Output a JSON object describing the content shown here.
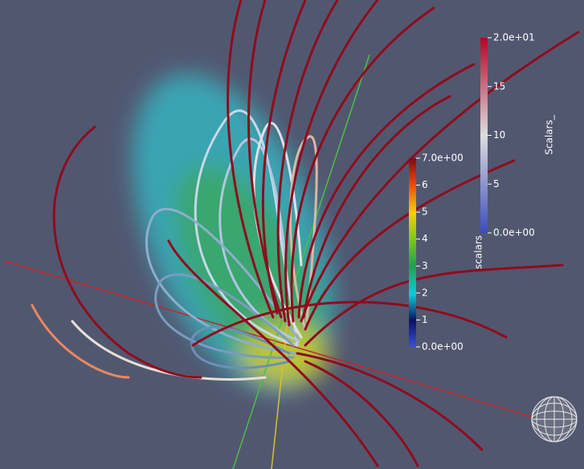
{
  "colorbars": [
    {
      "title": "scalars",
      "range": [
        0,
        7
      ],
      "ticks": [
        {
          "value": 7,
          "label": "7.0e+00"
        },
        6,
        5,
        4,
        3,
        2,
        1,
        {
          "value": 0,
          "label": "0.0e+00"
        }
      ]
    },
    {
      "title": "Scalars_",
      "range": [
        0,
        20
      ],
      "ticks": [
        {
          "value": 20,
          "label": "2.0e+01"
        },
        15,
        10,
        5,
        {
          "value": 0,
          "label": "0.0e+00"
        }
      ]
    }
  ]
}
